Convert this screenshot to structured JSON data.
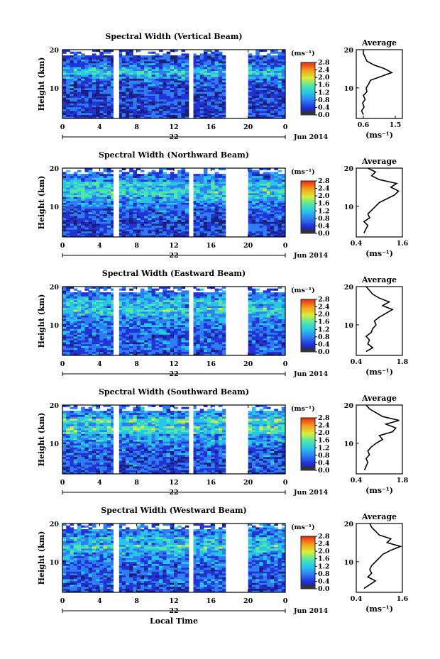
{
  "chart_data": [
    {
      "type": "heatmap",
      "title": "Spectral Width (Vertical Beam)",
      "ylabel": "Height (km)",
      "xlabel": "",
      "x_ticks": [
        "0",
        "4",
        "8",
        "12",
        "16",
        "20",
        "0"
      ],
      "y_ticks": [
        "20",
        "10"
      ],
      "date_day": "22",
      "date_month": "Jun 2014",
      "xlim": [
        0,
        24
      ],
      "ylim": [
        2,
        20
      ],
      "gaps_hours": [
        [
          5.5,
          6.1
        ],
        [
          13.7,
          14.1
        ],
        [
          17.6,
          19.9
        ]
      ],
      "colorbar": {
        "unit": "(ms⁻¹)",
        "ticks": [
          "2.8",
          "2.4",
          "2.0",
          "1.6",
          "1.2",
          "0.8",
          "0.4",
          "0.0"
        ],
        "range": [
          0.0,
          2.8
        ]
      },
      "average_profile": {
        "title": "Average",
        "xlabel": "(ms⁻¹)",
        "x_ticks": [
          "0.6",
          "1.5"
        ],
        "xlim": [
          0.4,
          1.7
        ],
        "y_ticks": [
          "20",
          "10"
        ],
        "ylim": [
          2,
          20
        ],
        "heights": [
          3,
          4,
          5,
          6,
          7,
          8,
          9,
          10,
          11,
          12,
          13,
          14,
          15,
          16,
          17,
          18,
          19,
          20
        ],
        "values": [
          0.6,
          0.55,
          0.62,
          0.58,
          0.65,
          0.6,
          0.7,
          0.68,
          0.75,
          0.8,
          1.1,
          1.4,
          1.2,
          0.9,
          0.7,
          0.65,
          0.6,
          0.6
        ]
      }
    },
    {
      "type": "heatmap",
      "title": "Spectral Width (Northward Beam)",
      "ylabel": "Height (km)",
      "xlabel": "",
      "x_ticks": [
        "0",
        "4",
        "8",
        "12",
        "16",
        "20",
        "0"
      ],
      "y_ticks": [
        "20",
        "10"
      ],
      "date_day": "22",
      "date_month": "Jun 2014",
      "xlim": [
        0,
        24
      ],
      "ylim": [
        2,
        20
      ],
      "gaps_hours": [
        [
          5.5,
          6.1
        ],
        [
          13.7,
          14.1
        ],
        [
          17.6,
          19.9
        ]
      ],
      "colorbar": {
        "unit": "(ms⁻¹)",
        "ticks": [
          "2.8",
          "2.4",
          "2.0",
          "1.6",
          "1.2",
          "0.8",
          "0.4",
          "0.0"
        ],
        "range": [
          0.0,
          2.8
        ]
      },
      "average_profile": {
        "title": "Average",
        "xlabel": "(ms⁻¹)",
        "x_ticks": [
          "0.4",
          "1.6"
        ],
        "xlim": [
          0.4,
          1.6
        ],
        "y_ticks": [
          "20",
          "10"
        ],
        "ylim": [
          2,
          20
        ],
        "heights": [
          3,
          4,
          5,
          6,
          7,
          8,
          9,
          10,
          11,
          12,
          13,
          14,
          15,
          16,
          17,
          18,
          19,
          20
        ],
        "values": [
          0.6,
          0.65,
          0.7,
          0.6,
          0.75,
          0.7,
          0.8,
          0.9,
          1.0,
          1.2,
          1.4,
          1.5,
          1.3,
          1.45,
          1.0,
          0.8,
          0.9,
          0.7
        ]
      }
    },
    {
      "type": "heatmap",
      "title": "Spectral Width (Eastward Beam)",
      "ylabel": "Height (km)",
      "xlabel": "",
      "x_ticks": [
        "0",
        "4",
        "8",
        "12",
        "16",
        "20",
        "0"
      ],
      "y_ticks": [
        "20",
        "10"
      ],
      "date_day": "22",
      "date_month": "Jun 2014",
      "xlim": [
        0,
        24
      ],
      "ylim": [
        2,
        20
      ],
      "gaps_hours": [
        [
          5.5,
          6.1
        ],
        [
          13.7,
          14.1
        ],
        [
          17.6,
          19.9
        ]
      ],
      "colorbar": {
        "unit": "(ms⁻¹)",
        "ticks": [
          "2.8",
          "2.4",
          "2.0",
          "1.6",
          "1.2",
          "0.8",
          "0.4",
          "0.0"
        ],
        "range": [
          0.0,
          2.8
        ]
      },
      "average_profile": {
        "title": "Average",
        "xlabel": "(ms⁻¹)",
        "x_ticks": [
          "0.4",
          "1.8"
        ],
        "xlim": [
          0.4,
          1.8
        ],
        "y_ticks": [
          "20",
          "10"
        ],
        "ylim": [
          2,
          20
        ],
        "heights": [
          3,
          4,
          5,
          6,
          7,
          8,
          9,
          10,
          11,
          12,
          13,
          14,
          15,
          16,
          17,
          18,
          19,
          20
        ],
        "values": [
          0.7,
          0.9,
          0.75,
          0.8,
          0.7,
          0.85,
          0.9,
          1.0,
          0.95,
          1.1,
          1.3,
          1.5,
          1.2,
          1.4,
          1.1,
          0.9,
          0.8,
          0.7
        ]
      }
    },
    {
      "type": "heatmap",
      "title": "Spectral Width (Southward Beam)",
      "ylabel": "Height (km)",
      "xlabel": "",
      "x_ticks": [
        "0",
        "4",
        "8",
        "12",
        "16",
        "20",
        "0"
      ],
      "y_ticks": [
        "20",
        "10"
      ],
      "date_day": "22",
      "date_month": "Jun 2014",
      "xlim": [
        0,
        24
      ],
      "ylim": [
        2,
        20
      ],
      "gaps_hours": [
        [
          5.5,
          6.1
        ],
        [
          13.7,
          14.1
        ],
        [
          17.6,
          19.9
        ]
      ],
      "colorbar": {
        "unit": "(ms⁻¹)",
        "ticks": [
          "2.8",
          "2.4",
          "2.0",
          "1.6",
          "1.2",
          "0.8",
          "0.4",
          "0.0"
        ],
        "range": [
          0.0,
          2.8
        ]
      },
      "average_profile": {
        "title": "Average",
        "xlabel": "(ms⁻¹)",
        "x_ticks": [
          "0.4",
          "1.8"
        ],
        "xlim": [
          0.4,
          1.8
        ],
        "y_ticks": [
          "20",
          "10"
        ],
        "ylim": [
          2,
          20
        ],
        "heights": [
          3,
          4,
          5,
          6,
          7,
          8,
          9,
          10,
          11,
          12,
          13,
          14,
          15,
          16,
          17,
          18,
          19,
          20
        ],
        "values": [
          0.65,
          0.7,
          0.75,
          0.7,
          0.8,
          0.75,
          0.85,
          1.0,
          1.2,
          1.1,
          1.5,
          1.6,
          1.3,
          1.7,
          1.2,
          1.0,
          0.8,
          0.7
        ]
      }
    },
    {
      "type": "heatmap",
      "title": "Spectral Width (Westward Beam)",
      "ylabel": "Height (km)",
      "xlabel": "Local Time",
      "x_ticks": [
        "0",
        "4",
        "8",
        "12",
        "16",
        "20",
        "0"
      ],
      "y_ticks": [
        "20",
        "10"
      ],
      "date_day": "22",
      "date_month": "Jun 2014",
      "xlim": [
        0,
        24
      ],
      "ylim": [
        2,
        20
      ],
      "gaps_hours": [
        [
          5.5,
          6.1
        ],
        [
          13.7,
          14.1
        ],
        [
          17.6,
          19.9
        ]
      ],
      "colorbar": {
        "unit": "(ms⁻¹)",
        "ticks": [
          "2.8",
          "2.4",
          "2.0",
          "1.6",
          "1.2",
          "0.8",
          "0.4",
          "0.0"
        ],
        "range": [
          0.0,
          2.8
        ]
      },
      "average_profile": {
        "title": "Average",
        "xlabel": "(ms⁻¹)",
        "x_ticks": [
          "0.4",
          "1.6"
        ],
        "xlim": [
          0.4,
          1.6
        ],
        "y_ticks": [
          "20",
          "10"
        ],
        "ylim": [
          2,
          20
        ],
        "heights": [
          3,
          4,
          5,
          6,
          7,
          8,
          9,
          10,
          11,
          12,
          13,
          14,
          15,
          16,
          17,
          18,
          19,
          20
        ],
        "values": [
          0.6,
          0.75,
          0.9,
          0.7,
          0.8,
          0.75,
          0.8,
          0.9,
          1.0,
          1.1,
          1.3,
          1.55,
          1.2,
          1.3,
          1.0,
          0.9,
          0.8,
          0.75
        ]
      }
    }
  ]
}
